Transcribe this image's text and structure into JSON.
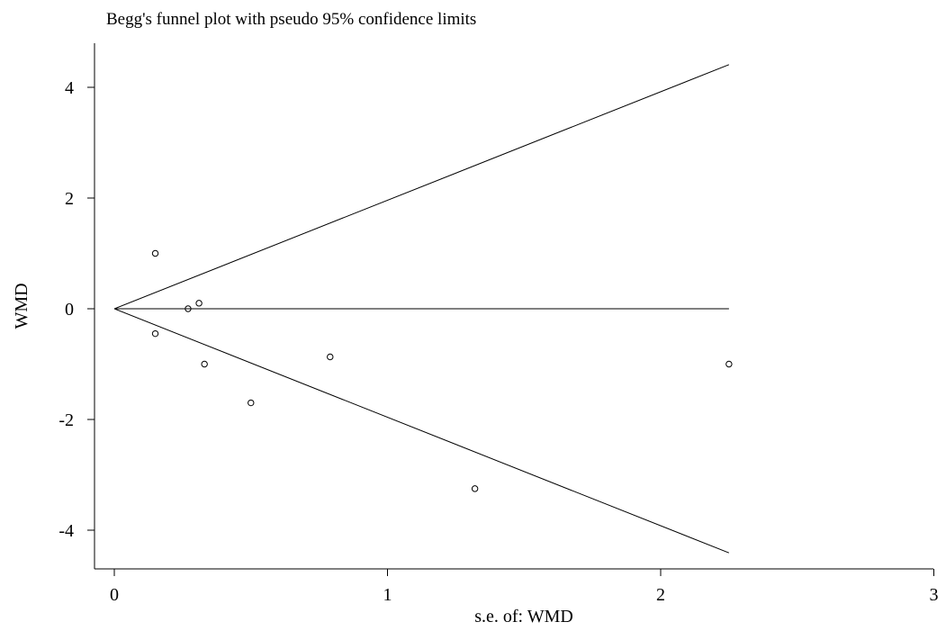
{
  "chart_data": {
    "type": "scatter",
    "title": "Begg's funnel plot with pseudo 95% confidence limits",
    "xlabel": "s.e. of: WMD",
    "ylabel": "WMD",
    "xlim": [
      0,
      3
    ],
    "ylim": [
      -4.5,
      4.6
    ],
    "xticks": [
      0,
      1,
      2,
      3
    ],
    "yticks": [
      4,
      2,
      0,
      -2,
      -4
    ],
    "grid": false,
    "points": [
      {
        "x": 0.15,
        "y": 1.0
      },
      {
        "x": 0.15,
        "y": -0.45
      },
      {
        "x": 0.27,
        "y": 0.0
      },
      {
        "x": 0.31,
        "y": 0.1
      },
      {
        "x": 0.33,
        "y": -1.0
      },
      {
        "x": 0.5,
        "y": -1.7
      },
      {
        "x": 0.79,
        "y": -0.87
      },
      {
        "x": 1.32,
        "y": -3.25
      },
      {
        "x": 2.25,
        "y": -1.0
      }
    ],
    "pooled_estimate": 0.0,
    "se_max": 2.25,
    "limit_multiplier": 1.96
  }
}
